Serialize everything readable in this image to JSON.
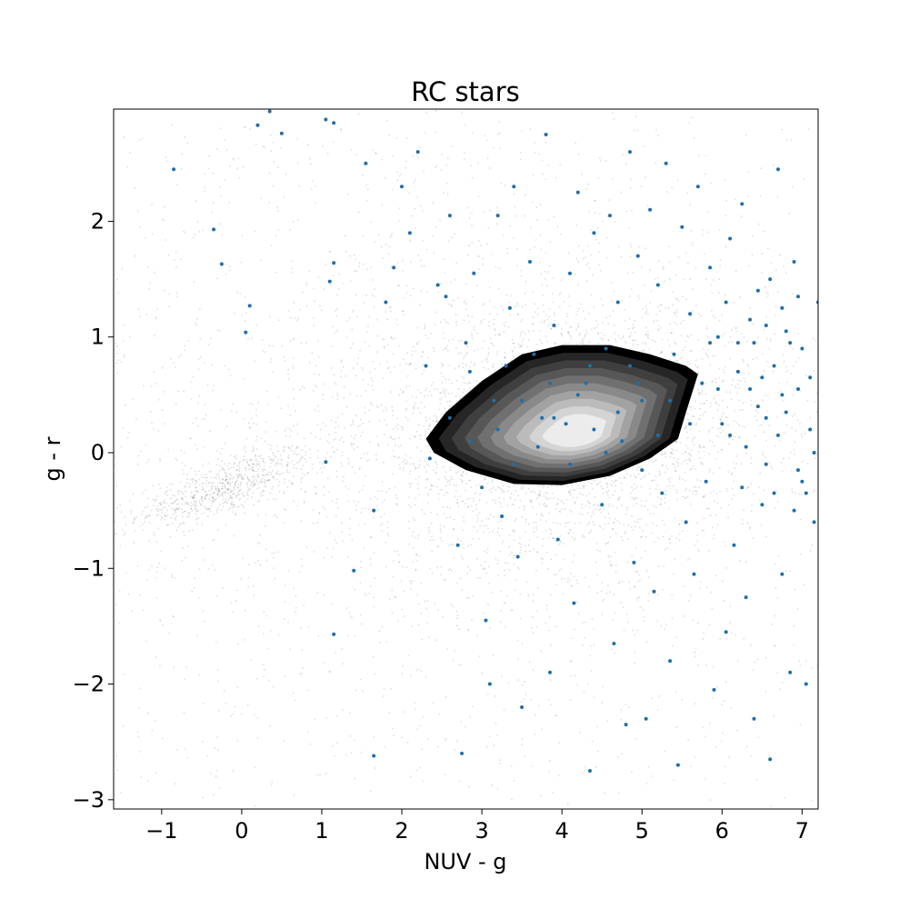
{
  "chart_data": {
    "type": "scatter",
    "title": "RC stars",
    "xlabel": "NUV - g",
    "ylabel": "g - r",
    "xlim": [
      -1.6,
      7.2
    ],
    "ylim": [
      -3.08,
      2.97
    ],
    "xticks": [
      -1,
      0,
      1,
      2,
      3,
      4,
      5,
      6,
      7
    ],
    "yticks": [
      -3,
      -2,
      -1,
      0,
      1,
      2
    ],
    "xtick_labels": [
      "−1",
      "0",
      "1",
      "2",
      "3",
      "4",
      "5",
      "6",
      "7"
    ],
    "ytick_labels": [
      "−3",
      "−2",
      "−1",
      "0",
      "1",
      "2"
    ],
    "grid": false,
    "colors": {
      "background_points": "#000000",
      "highlight_points": "#1f6fa8",
      "contour_levels": [
        "#000000",
        "#262626",
        "#3f3f3f",
        "#575757",
        "#707070",
        "#898989",
        "#a2a2a2",
        "#bbbbbb",
        "#d4d4d4",
        "#ececec"
      ]
    },
    "layers": [
      {
        "kind": "background-density",
        "components": [
          {
            "center": [
              -0.2,
              -0.3
            ],
            "spread": [
              0.55,
              0.12
            ],
            "tilt": 0.22,
            "weight": 0.1
          },
          {
            "center": [
              4.1,
              0.2
            ],
            "spread": [
              1.25,
              0.55
            ],
            "tilt": 0.05,
            "weight": 0.4
          },
          {
            "center": [
              2.5,
              0.3
            ],
            "spread": [
              2.8,
              1.6
            ],
            "tilt": 0.0,
            "weight": 0.25
          },
          {
            "center": [
              2.8,
              -0.2
            ],
            "spread": [
              4.5,
              2.5
            ],
            "tilt": 0.0,
            "weight": 0.25
          }
        ]
      },
      {
        "kind": "contour",
        "levels": 10,
        "outer_boundary": [
          [
            2.3,
            0.12
          ],
          [
            2.55,
            0.35
          ],
          [
            3.0,
            0.62
          ],
          [
            3.5,
            0.85
          ],
          [
            4.0,
            0.93
          ],
          [
            4.6,
            0.93
          ],
          [
            5.1,
            0.85
          ],
          [
            5.55,
            0.75
          ],
          [
            5.7,
            0.68
          ],
          [
            5.55,
            0.35
          ],
          [
            5.45,
            0.12
          ],
          [
            5.1,
            -0.05
          ],
          [
            4.6,
            -0.2
          ],
          [
            4.0,
            -0.28
          ],
          [
            3.4,
            -0.27
          ],
          [
            2.8,
            -0.15
          ],
          [
            2.4,
            0.0
          ]
        ],
        "peak": [
          4.2,
          0.15
        ]
      },
      {
        "kind": "highlight",
        "name": "RC stars",
        "points": [
          [
            -0.85,
            2.45
          ],
          [
            -0.35,
            1.93
          ],
          [
            -0.25,
            1.63
          ],
          [
            0.1,
            1.27
          ],
          [
            0.05,
            1.04
          ],
          [
            0.2,
            2.83
          ],
          [
            0.5,
            2.76
          ],
          [
            0.35,
            2.95
          ],
          [
            1.05,
            2.88
          ],
          [
            1.15,
            2.85
          ],
          [
            1.1,
            1.48
          ],
          [
            1.15,
            1.64
          ],
          [
            1.05,
            -0.08
          ],
          [
            1.15,
            -1.57
          ],
          [
            1.4,
            -1.02
          ],
          [
            1.65,
            -2.62
          ],
          [
            1.65,
            -0.5
          ],
          [
            1.55,
            2.5
          ],
          [
            1.8,
            1.3
          ],
          [
            1.9,
            1.6
          ],
          [
            2.0,
            2.3
          ],
          [
            2.1,
            1.9
          ],
          [
            2.2,
            2.6
          ],
          [
            2.3,
            0.75
          ],
          [
            2.35,
            -0.05
          ],
          [
            2.45,
            1.45
          ],
          [
            2.55,
            1.35
          ],
          [
            2.6,
            2.05
          ],
          [
            2.7,
            -0.8
          ],
          [
            2.75,
            -2.6
          ],
          [
            2.8,
            0.95
          ],
          [
            2.85,
            0.7
          ],
          [
            2.9,
            1.55
          ],
          [
            3.0,
            -0.3
          ],
          [
            3.05,
            -1.45
          ],
          [
            3.1,
            -2.0
          ],
          [
            3.15,
            0.45
          ],
          [
            3.2,
            2.05
          ],
          [
            3.25,
            -0.55
          ],
          [
            3.3,
            0.75
          ],
          [
            3.35,
            1.25
          ],
          [
            3.4,
            2.3
          ],
          [
            3.45,
            -0.9
          ],
          [
            3.5,
            -2.2
          ],
          [
            3.6,
            1.65
          ],
          [
            3.65,
            0.85
          ],
          [
            3.75,
            0.3
          ],
          [
            3.8,
            2.75
          ],
          [
            3.85,
            -1.9
          ],
          [
            3.9,
            1.1
          ],
          [
            3.95,
            -0.75
          ],
          [
            4.05,
            0.25
          ],
          [
            4.1,
            1.55
          ],
          [
            4.15,
            -1.3
          ],
          [
            4.2,
            2.25
          ],
          [
            4.3,
            0.6
          ],
          [
            4.35,
            -2.75
          ],
          [
            4.4,
            1.9
          ],
          [
            4.5,
            -0.45
          ],
          [
            4.55,
            0.9
          ],
          [
            4.6,
            2.05
          ],
          [
            4.65,
            -1.65
          ],
          [
            4.7,
            1.3
          ],
          [
            4.75,
            0.1
          ],
          [
            4.8,
            -2.35
          ],
          [
            4.85,
            2.6
          ],
          [
            4.9,
            -0.95
          ],
          [
            4.95,
            1.7
          ],
          [
            5.0,
            0.45
          ],
          [
            5.05,
            -2.3
          ],
          [
            5.1,
            2.1
          ],
          [
            5.15,
            -1.2
          ],
          [
            5.2,
            1.45
          ],
          [
            5.25,
            -0.35
          ],
          [
            5.3,
            2.5
          ],
          [
            5.35,
            -1.8
          ],
          [
            5.4,
            0.85
          ],
          [
            5.45,
            -2.7
          ],
          [
            5.5,
            1.95
          ],
          [
            5.55,
            -0.6
          ],
          [
            5.6,
            1.2
          ],
          [
            5.65,
            -1.05
          ],
          [
            5.7,
            2.3
          ],
          [
            5.75,
            0.6
          ],
          [
            5.8,
            -0.25
          ],
          [
            5.85,
            1.6
          ],
          [
            5.9,
            -2.05
          ],
          [
            5.95,
            1.0
          ],
          [
            6.0,
            0.25
          ],
          [
            6.05,
            -1.55
          ],
          [
            6.1,
            1.85
          ],
          [
            6.15,
            -0.8
          ],
          [
            6.2,
            0.95
          ],
          [
            6.25,
            2.15
          ],
          [
            6.3,
            -1.25
          ],
          [
            6.35,
            0.55
          ],
          [
            6.4,
            -2.3
          ],
          [
            6.45,
            1.4
          ],
          [
            6.5,
            -0.45
          ],
          [
            6.55,
            1.1
          ],
          [
            6.6,
            -2.65
          ],
          [
            6.65,
            0.75
          ],
          [
            6.7,
            2.45
          ],
          [
            6.75,
            -1.05
          ],
          [
            6.8,
            0.35
          ],
          [
            6.85,
            -1.9
          ],
          [
            6.9,
            1.65
          ],
          [
            6.95,
            -0.15
          ],
          [
            7.0,
            0.9
          ],
          [
            7.05,
            -2.0
          ],
          [
            7.1,
            0.2
          ],
          [
            7.15,
            -0.6
          ],
          [
            7.2,
            1.3
          ],
          [
            6.05,
            1.3
          ],
          [
            6.2,
            0.7
          ],
          [
            6.4,
            0.95
          ],
          [
            6.55,
            0.3
          ],
          [
            6.65,
            -0.35
          ],
          [
            6.75,
            1.25
          ],
          [
            6.95,
            0.55
          ],
          [
            7.05,
            -0.35
          ],
          [
            5.95,
            0.55
          ],
          [
            6.3,
            0.05
          ],
          [
            6.85,
            0.95
          ],
          [
            7.1,
            0.65
          ],
          [
            6.5,
            0.65
          ],
          [
            6.7,
            0.15
          ],
          [
            6.9,
            -0.5
          ],
          [
            7.15,
            0.0
          ],
          [
            6.25,
            -0.3
          ],
          [
            6.45,
            0.4
          ],
          [
            6.6,
            1.5
          ],
          [
            6.8,
            1.05
          ],
          [
            7.0,
            -0.25
          ],
          [
            5.85,
            0.95
          ],
          [
            6.1,
            0.15
          ],
          [
            6.35,
            1.15
          ],
          [
            6.55,
            -0.1
          ],
          [
            6.75,
            0.5
          ],
          [
            6.95,
            1.35
          ],
          [
            3.2,
            0.2
          ],
          [
            3.5,
            0.45
          ],
          [
            3.9,
            0.3
          ],
          [
            4.2,
            0.5
          ],
          [
            4.4,
            0.2
          ],
          [
            4.7,
            0.35
          ],
          [
            4.95,
            0.6
          ],
          [
            5.2,
            0.15
          ],
          [
            3.7,
            0.05
          ],
          [
            4.1,
            -0.1
          ],
          [
            4.55,
            0.0
          ],
          [
            5.0,
            -0.15
          ],
          [
            3.4,
            -0.1
          ],
          [
            2.85,
            0.1
          ],
          [
            2.6,
            0.3
          ],
          [
            5.35,
            0.45
          ],
          [
            5.6,
            0.25
          ],
          [
            4.85,
            0.75
          ],
          [
            4.35,
            0.75
          ],
          [
            3.85,
            0.6
          ]
        ]
      }
    ]
  }
}
